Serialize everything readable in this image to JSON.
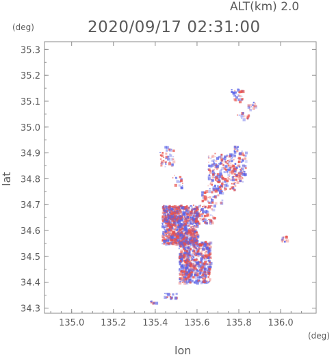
{
  "header": {
    "alt_label": "ALT(km) 2.0",
    "timestamp": "2020/09/17 02:31:00",
    "y_unit": "(deg)",
    "x_unit": "(deg)"
  },
  "chart_data": {
    "type": "scatter",
    "title": "2020/09/17 02:31:00",
    "subtitle": "ALT(km) 2.0",
    "xlabel": "lon",
    "ylabel": "lat",
    "x_unit": "(deg)",
    "y_unit": "(deg)",
    "xlim": [
      134.87,
      136.17
    ],
    "ylim": [
      34.28,
      35.33
    ],
    "x_ticks": [
      135.0,
      135.2,
      135.4,
      135.6,
      135.8,
      136.0
    ],
    "x_tick_labels": [
      "135.0",
      "135.2",
      "135.4",
      "135.6",
      "135.8",
      "136.0"
    ],
    "y_ticks": [
      34.3,
      34.4,
      34.5,
      34.6,
      34.7,
      34.8,
      34.9,
      35.0,
      35.1,
      35.2,
      35.3
    ],
    "y_tick_labels": [
      "34.3",
      "34.4",
      "34.5",
      "34.6",
      "34.7",
      "34.8",
      "34.9",
      "35.0",
      "35.1",
      "35.2",
      "35.3"
    ],
    "grid": false,
    "colors": {
      "positive": "#e8504a",
      "negative": "#5a62e6",
      "axis": "#8a8a8a"
    },
    "clusters": [
      {
        "lon": [
          135.43,
          135.6
        ],
        "lat": [
          34.55,
          34.7
        ],
        "count": 900
      },
      {
        "lon": [
          135.51,
          135.66
        ],
        "lat": [
          34.4,
          34.56
        ],
        "count": 650
      },
      {
        "lon": [
          135.44,
          135.52
        ],
        "lat": [
          34.62,
          34.66
        ],
        "count": 60
      },
      {
        "lon": [
          135.59,
          135.68
        ],
        "lat": [
          34.63,
          34.7
        ],
        "count": 80
      },
      {
        "lon": [
          135.65,
          135.78
        ],
        "lat": [
          34.76,
          34.9
        ],
        "count": 220
      },
      {
        "lon": [
          135.77,
          135.83
        ],
        "lat": [
          34.79,
          34.93
        ],
        "count": 90
      },
      {
        "lon": [
          135.42,
          135.49
        ],
        "lat": [
          34.85,
          34.93
        ],
        "count": 40
      },
      {
        "lon": [
          135.62,
          135.72
        ],
        "lat": [
          34.71,
          34.76
        ],
        "count": 45
      },
      {
        "lon": [
          135.76,
          135.82
        ],
        "lat": [
          35.1,
          35.15
        ],
        "count": 30
      },
      {
        "lon": [
          135.84,
          135.88
        ],
        "lat": [
          35.07,
          35.1
        ],
        "count": 16
      },
      {
        "lon": [
          135.79,
          135.85
        ],
        "lat": [
          35.03,
          35.06
        ],
        "count": 14
      },
      {
        "lon": [
          136.0,
          136.03
        ],
        "lat": [
          34.56,
          34.58
        ],
        "count": 14
      },
      {
        "lon": [
          135.44,
          135.5
        ],
        "lat": [
          34.34,
          34.36
        ],
        "count": 18
      },
      {
        "lon": [
          135.37,
          135.4
        ],
        "lat": [
          34.32,
          34.33
        ],
        "count": 8
      },
      {
        "lon": [
          135.48,
          135.53
        ],
        "lat": [
          34.77,
          34.82
        ],
        "count": 16
      }
    ]
  }
}
